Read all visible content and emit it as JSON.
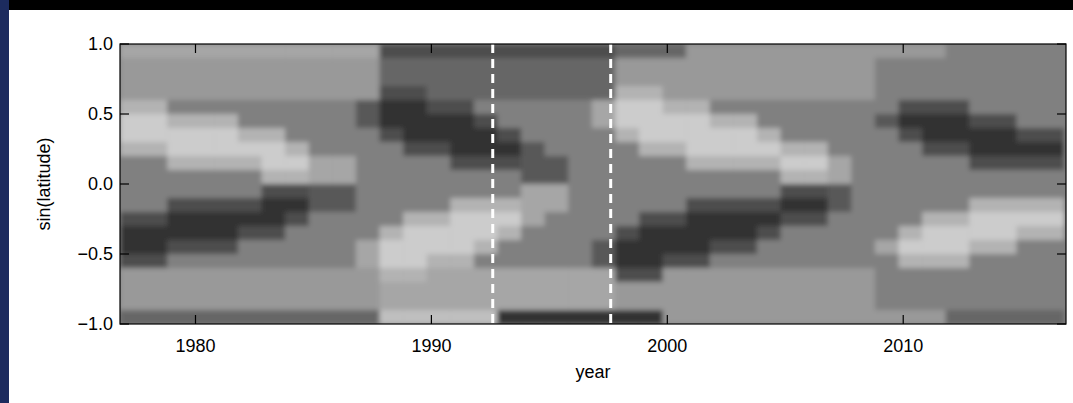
{
  "chart_data": {
    "type": "heatmap",
    "xlabel": "year",
    "ylabel": "sin(latitude)",
    "xlim": [
      1976.8,
      2016.9
    ],
    "ylim": [
      -1.0,
      1.0
    ],
    "xticks": [
      1980,
      1990,
      2000,
      2010
    ],
    "yticks": [
      {
        "value": -1.0,
        "label": "−1.0"
      },
      {
        "value": -0.5,
        "label": "−0.5"
      },
      {
        "value": 0.0,
        "label": "0.0"
      },
      {
        "value": 0.5,
        "label": "0.5"
      },
      {
        "value": 1.0,
        "label": "1.0"
      }
    ],
    "dashed_lines": [
      1992.6,
      1997.6
    ],
    "zlim": [
      -10,
      10
    ],
    "x_bins": [
      1976.8,
      1977.8,
      1978.8,
      1979.8,
      1980.8,
      1981.8,
      1982.8,
      1983.8,
      1984.8,
      1985.8,
      1986.8,
      1987.8,
      1988.8,
      1989.8,
      1990.8,
      1991.8,
      1992.8,
      1993.8,
      1994.8,
      1995.8,
      1996.8,
      1997.8,
      1998.8,
      1999.8,
      2000.8,
      2001.8,
      2002.8,
      2003.8,
      2004.8,
      2005.8,
      2006.8,
      2007.8,
      2008.8,
      2009.8,
      2010.8,
      2011.8,
      2012.8,
      2013.8,
      2014.8,
      2015.8,
      2016.8
    ],
    "y_bins": [
      1.0,
      0.9,
      0.8,
      0.7,
      0.6,
      0.5,
      0.4,
      0.3,
      0.2,
      0.1,
      0.0,
      -0.1,
      -0.2,
      -0.3,
      -0.4,
      -0.5,
      -0.6,
      -0.7,
      -0.8,
      -0.9,
      -1.0
    ],
    "z": [
      [
        3,
        3,
        3,
        3,
        3,
        3,
        3,
        3,
        3,
        3,
        3,
        -4,
        -4,
        -4,
        -4,
        -4,
        -4,
        -4,
        -4,
        -4,
        -4,
        -2,
        -2,
        -2,
        2,
        2,
        2,
        2,
        2,
        2,
        2,
        2,
        2,
        2,
        2,
        0,
        0,
        0,
        0,
        0
      ],
      [
        2,
        2,
        2,
        2,
        2,
        2,
        2,
        2,
        2,
        2,
        2,
        -2,
        -2,
        -2,
        -2,
        -2,
        -2,
        -2,
        -2,
        -2,
        -2,
        2,
        2,
        2,
        2,
        2,
        2,
        2,
        2,
        2,
        2,
        2,
        0,
        0,
        0,
        0,
        0,
        0,
        0,
        0
      ],
      [
        2,
        2,
        2,
        2,
        2,
        2,
        2,
        2,
        2,
        2,
        2,
        -2,
        -2,
        -2,
        -2,
        -2,
        -2,
        -2,
        -2,
        -2,
        -2,
        2,
        2,
        2,
        2,
        2,
        2,
        2,
        2,
        2,
        2,
        2,
        0,
        0,
        0,
        0,
        0,
        0,
        0,
        0
      ],
      [
        2,
        2,
        2,
        2,
        2,
        2,
        2,
        2,
        2,
        2,
        2,
        -4,
        -4,
        -2,
        -2,
        -2,
        -2,
        -2,
        -2,
        -2,
        -2,
        4,
        4,
        2,
        2,
        2,
        2,
        2,
        2,
        2,
        2,
        2,
        0,
        0,
        0,
        0,
        0,
        0,
        0,
        0
      ],
      [
        4,
        4,
        0,
        0,
        0,
        0,
        0,
        0,
        0,
        0,
        -3,
        -6,
        -6,
        -4,
        -4,
        0,
        0,
        0,
        0,
        0,
        3,
        6,
        6,
        4,
        4,
        0,
        0,
        0,
        0,
        0,
        0,
        0,
        0,
        -4,
        -4,
        -4,
        0,
        0,
        0,
        0
      ],
      [
        6,
        6,
        4,
        4,
        4,
        0,
        0,
        0,
        0,
        0,
        -3,
        -6,
        -6,
        -6,
        -6,
        -4,
        0,
        0,
        0,
        0,
        3,
        6,
        6,
        6,
        6,
        4,
        4,
        0,
        0,
        0,
        0,
        0,
        -3,
        -6,
        -6,
        -6,
        -4,
        -4,
        0,
        0
      ],
      [
        6,
        6,
        6,
        6,
        6,
        4,
        4,
        0,
        0,
        0,
        0,
        -4,
        -6,
        -6,
        -6,
        -6,
        -4,
        0,
        0,
        0,
        0,
        4,
        6,
        6,
        6,
        6,
        6,
        4,
        0,
        0,
        0,
        0,
        0,
        -4,
        -6,
        -6,
        -6,
        -6,
        -4,
        -4
      ],
      [
        4,
        4,
        6,
        6,
        6,
        6,
        6,
        4,
        0,
        0,
        0,
        0,
        -4,
        -4,
        -6,
        -6,
        -6,
        -3,
        0,
        0,
        0,
        0,
        4,
        4,
        6,
        6,
        6,
        6,
        4,
        4,
        0,
        0,
        0,
        0,
        -4,
        -4,
        -6,
        -6,
        -6,
        -6
      ],
      [
        0,
        0,
        4,
        4,
        4,
        4,
        6,
        6,
        3,
        3,
        0,
        0,
        0,
        0,
        -4,
        -4,
        -4,
        -3,
        -3,
        0,
        0,
        0,
        0,
        0,
        4,
        4,
        4,
        4,
        6,
        6,
        3,
        0,
        0,
        0,
        0,
        0,
        -4,
        -4,
        -4,
        -4
      ],
      [
        0,
        0,
        0,
        0,
        0,
        0,
        4,
        4,
        3,
        3,
        0,
        0,
        0,
        0,
        0,
        0,
        0,
        -3,
        -3,
        0,
        0,
        0,
        0,
        0,
        0,
        0,
        0,
        0,
        4,
        4,
        3,
        0,
        0,
        0,
        0,
        0,
        0,
        0,
        0,
        0
      ],
      [
        0,
        0,
        0,
        0,
        0,
        0,
        -4,
        -4,
        -3,
        -3,
        0,
        0,
        0,
        0,
        0,
        0,
        0,
        3,
        3,
        0,
        0,
        0,
        0,
        0,
        0,
        0,
        0,
        0,
        -4,
        -4,
        -3,
        0,
        0,
        0,
        0,
        0,
        0,
        0,
        0,
        0
      ],
      [
        0,
        0,
        -4,
        -4,
        -4,
        -4,
        -6,
        -6,
        -3,
        -3,
        0,
        0,
        0,
        0,
        4,
        4,
        4,
        3,
        3,
        0,
        0,
        0,
        0,
        0,
        -4,
        -4,
        -4,
        -4,
        -6,
        -6,
        -3,
        0,
        0,
        0,
        0,
        0,
        4,
        4,
        4,
        4
      ],
      [
        -4,
        -4,
        -6,
        -6,
        -6,
        -6,
        -6,
        -4,
        0,
        0,
        0,
        0,
        4,
        4,
        6,
        6,
        6,
        3,
        0,
        0,
        0,
        0,
        -4,
        -4,
        -6,
        -6,
        -6,
        -6,
        -4,
        -4,
        0,
        0,
        0,
        0,
        4,
        4,
        6,
        6,
        6,
        6
      ],
      [
        -6,
        -6,
        -6,
        -6,
        -6,
        -4,
        -4,
        0,
        0,
        0,
        0,
        4,
        6,
        6,
        6,
        6,
        4,
        0,
        0,
        0,
        0,
        -4,
        -6,
        -6,
        -6,
        -6,
        -6,
        -4,
        0,
        0,
        0,
        0,
        0,
        4,
        6,
        6,
        6,
        6,
        4,
        4
      ],
      [
        -6,
        -6,
        -4,
        -4,
        -4,
        0,
        0,
        0,
        0,
        0,
        3,
        6,
        6,
        6,
        6,
        4,
        0,
        0,
        0,
        0,
        -3,
        -6,
        -6,
        -6,
        -6,
        -4,
        -4,
        0,
        0,
        0,
        0,
        0,
        3,
        6,
        6,
        6,
        4,
        4,
        0,
        0
      ],
      [
        -4,
        -4,
        0,
        0,
        0,
        0,
        0,
        0,
        0,
        0,
        3,
        6,
        6,
        4,
        4,
        0,
        0,
        0,
        0,
        0,
        -3,
        -6,
        -6,
        -4,
        -4,
        0,
        0,
        0,
        0,
        0,
        0,
        0,
        0,
        4,
        4,
        4,
        0,
        0,
        0,
        0
      ],
      [
        2,
        2,
        2,
        2,
        2,
        2,
        2,
        2,
        2,
        2,
        2,
        4,
        4,
        3,
        3,
        3,
        3,
        3,
        3,
        3,
        3,
        -4,
        -4,
        2,
        2,
        2,
        2,
        2,
        2,
        2,
        2,
        2,
        0,
        0,
        0,
        0,
        0,
        0,
        0,
        0
      ],
      [
        2,
        2,
        2,
        2,
        2,
        2,
        2,
        2,
        2,
        2,
        2,
        3,
        3,
        3,
        3,
        3,
        3,
        3,
        3,
        3,
        3,
        2,
        2,
        2,
        2,
        2,
        2,
        2,
        2,
        2,
        2,
        2,
        0,
        0,
        0,
        0,
        0,
        0,
        0,
        0
      ],
      [
        2,
        2,
        2,
        2,
        2,
        2,
        2,
        2,
        2,
        2,
        2,
        3,
        3,
        3,
        3,
        3,
        3,
        3,
        3,
        3,
        3,
        2,
        2,
        2,
        2,
        2,
        2,
        2,
        2,
        2,
        2,
        2,
        0,
        0,
        0,
        0,
        0,
        0,
        0,
        0
      ],
      [
        -2,
        -2,
        -2,
        -2,
        -2,
        -2,
        -2,
        -2,
        -2,
        -2,
        -2,
        5,
        5,
        5,
        5,
        5,
        -6,
        -6,
        -6,
        -6,
        -6,
        -6,
        -6,
        2,
        2,
        2,
        2,
        2,
        2,
        2,
        2,
        2,
        2,
        2,
        2,
        -2,
        -2,
        -2,
        -2,
        -2
      ]
    ]
  }
}
